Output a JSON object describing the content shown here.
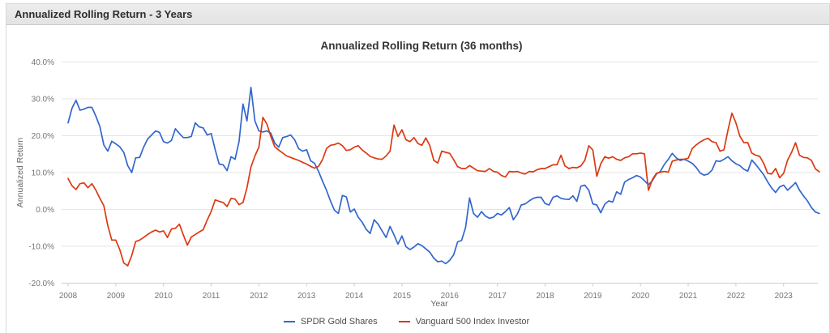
{
  "window": {
    "header_title": "Annualized Rolling Return - 3 Years"
  },
  "chart_data": {
    "type": "line",
    "title": "Annualized Rolling Return (36 months)",
    "xlabel": "Year",
    "ylabel": "Annualized Return",
    "ylim": [
      -20,
      40
    ],
    "y_tick_step": 10,
    "y_tick_labels": [
      "40.0%",
      "30.0%",
      "20.0%",
      "10.0%",
      "0.0%",
      "-10.0%",
      "-20.0%"
    ],
    "x_tick_labels": [
      "2008",
      "2009",
      "2010",
      "2011",
      "2012",
      "2013",
      "2014",
      "2015",
      "2016",
      "2017",
      "2018",
      "2019",
      "2020",
      "2021",
      "2022",
      "2023"
    ],
    "x_start_year": 2008,
    "points_per_year": 12,
    "grid": true,
    "legend_position": "bottom",
    "grid_color": "#e6e6e6",
    "axis_color": "#cfcfcf",
    "tick_text_color": "#757575",
    "axis_title_color": "#666666",
    "title_color": "#333333",
    "series": [
      {
        "name": "SPDR Gold Shares",
        "color": "#3366cc",
        "values": [
          23.5,
          27.5,
          29.6,
          26.9,
          27.2,
          27.7,
          27.7,
          25.3,
          22.5,
          17.5,
          15.8,
          18.5,
          17.8,
          17.0,
          15.5,
          11.9,
          10.0,
          14.0,
          14.1,
          16.9,
          19.1,
          20.2,
          21.3,
          20.9,
          18.4,
          18.0,
          18.7,
          21.9,
          20.6,
          19.5,
          19.5,
          19.8,
          23.5,
          22.4,
          22.1,
          20.2,
          20.6,
          16.2,
          12.3,
          12.1,
          10.5,
          14.3,
          13.6,
          18.4,
          28.6,
          24.0,
          33.1,
          24.0,
          21.3,
          21.0,
          21.3,
          20.7,
          18.0,
          16.9,
          19.5,
          19.8,
          20.2,
          18.9,
          16.5,
          15.8,
          16.2,
          13.2,
          12.5,
          10.3,
          7.7,
          5.2,
          2.3,
          -0.2,
          -1.1,
          3.8,
          3.4,
          -0.7,
          0.1,
          -2.1,
          -3.5,
          -5.4,
          -6.5,
          -2.8,
          -4.0,
          -5.8,
          -7.6,
          -4.6,
          -6.9,
          -9.4,
          -7.2,
          -10.1,
          -10.9,
          -10.2,
          -9.3,
          -9.8,
          -10.7,
          -11.6,
          -13.2,
          -14.2,
          -14.0,
          -14.7,
          -13.8,
          -12.3,
          -8.8,
          -8.4,
          -4.9,
          3.1,
          -1.1,
          -2.1,
          -0.6,
          -1.8,
          -2.4,
          -2.1,
          -1.1,
          -1.5,
          -0.6,
          0.5,
          -2.8,
          -1.3,
          1.2,
          1.5,
          2.3,
          3.0,
          3.3,
          3.3,
          1.6,
          1.2,
          3.3,
          3.7,
          3.0,
          2.8,
          2.7,
          3.7,
          2.2,
          6.3,
          6.6,
          5.2,
          1.5,
          1.2,
          -0.9,
          1.4,
          2.3,
          2.0,
          4.8,
          4.1,
          7.4,
          8.1,
          8.6,
          9.2,
          8.8,
          7.8,
          6.7,
          7.8,
          9.6,
          10.3,
          12.2,
          13.6,
          15.2,
          14.0,
          13.3,
          13.6,
          13.1,
          12.5,
          11.4,
          9.9,
          9.3,
          9.6,
          10.7,
          13.2,
          13.0,
          13.6,
          14.3,
          13.2,
          12.4,
          11.9,
          10.9,
          10.4,
          13.4,
          12.2,
          10.8,
          9.4,
          7.5,
          5.8,
          4.6,
          6.1,
          6.6,
          5.2,
          6.2,
          7.3,
          5.2,
          3.7,
          2.3,
          0.5,
          -0.7,
          -1.1
        ]
      },
      {
        "name": "Vanguard 500 Index Investor",
        "color": "#dc3912",
        "values": [
          8.4,
          6.4,
          5.4,
          7.0,
          7.2,
          5.9,
          7.0,
          5.2,
          3.0,
          1.0,
          -4.4,
          -8.3,
          -8.3,
          -10.9,
          -14.5,
          -15.3,
          -12.5,
          -8.7,
          -8.3,
          -7.6,
          -6.8,
          -6.1,
          -5.6,
          -6.1,
          -5.8,
          -7.6,
          -5.3,
          -5.1,
          -4.0,
          -6.9,
          -9.7,
          -7.5,
          -6.8,
          -6.1,
          -5.5,
          -2.9,
          -0.5,
          2.6,
          2.2,
          1.9,
          0.8,
          3.0,
          2.8,
          1.3,
          1.9,
          5.9,
          11.5,
          14.5,
          16.9,
          25.0,
          23.2,
          19.8,
          17.0,
          16.1,
          15.3,
          14.5,
          14.1,
          13.7,
          13.3,
          12.8,
          12.3,
          11.7,
          11.2,
          11.7,
          13.5,
          16.5,
          17.4,
          17.6,
          18.0,
          17.3,
          16.0,
          16.2,
          16.9,
          17.3,
          16.1,
          15.3,
          14.4,
          14.0,
          13.7,
          13.6,
          14.5,
          15.8,
          22.9,
          19.8,
          21.6,
          18.9,
          18.4,
          19.5,
          17.9,
          17.4,
          19.4,
          17.3,
          13.3,
          12.6,
          15.8,
          15.5,
          15.2,
          13.5,
          11.6,
          11.1,
          11.1,
          11.9,
          11.2,
          10.5,
          10.4,
          10.3,
          11.1,
          10.3,
          10.1,
          9.2,
          8.8,
          10.3,
          10.2,
          10.3,
          9.9,
          9.6,
          10.3,
          10.2,
          10.8,
          11.1,
          11.1,
          11.6,
          12.1,
          12.1,
          14.7,
          11.8,
          11.1,
          11.4,
          11.3,
          11.8,
          13.3,
          17.3,
          16.1,
          9.0,
          12.4,
          14.3,
          13.9,
          14.3,
          13.6,
          13.3,
          14.0,
          14.3,
          15.1,
          15.1,
          15.3,
          15.1,
          5.2,
          8.1,
          9.8,
          10.1,
          10.3,
          10.1,
          13.1,
          13.4,
          13.6,
          13.6,
          13.9,
          16.5,
          17.5,
          18.3,
          18.9,
          19.3,
          18.4,
          18.1,
          15.8,
          16.2,
          21.5,
          26.1,
          23.5,
          19.9,
          18.1,
          18.1,
          15.3,
          14.7,
          14.4,
          12.5,
          9.8,
          9.6,
          11.1,
          8.6,
          9.8,
          13.4,
          15.5,
          18.1,
          14.7,
          14.1,
          14.0,
          13.3,
          11.0,
          10.2
        ]
      }
    ]
  }
}
